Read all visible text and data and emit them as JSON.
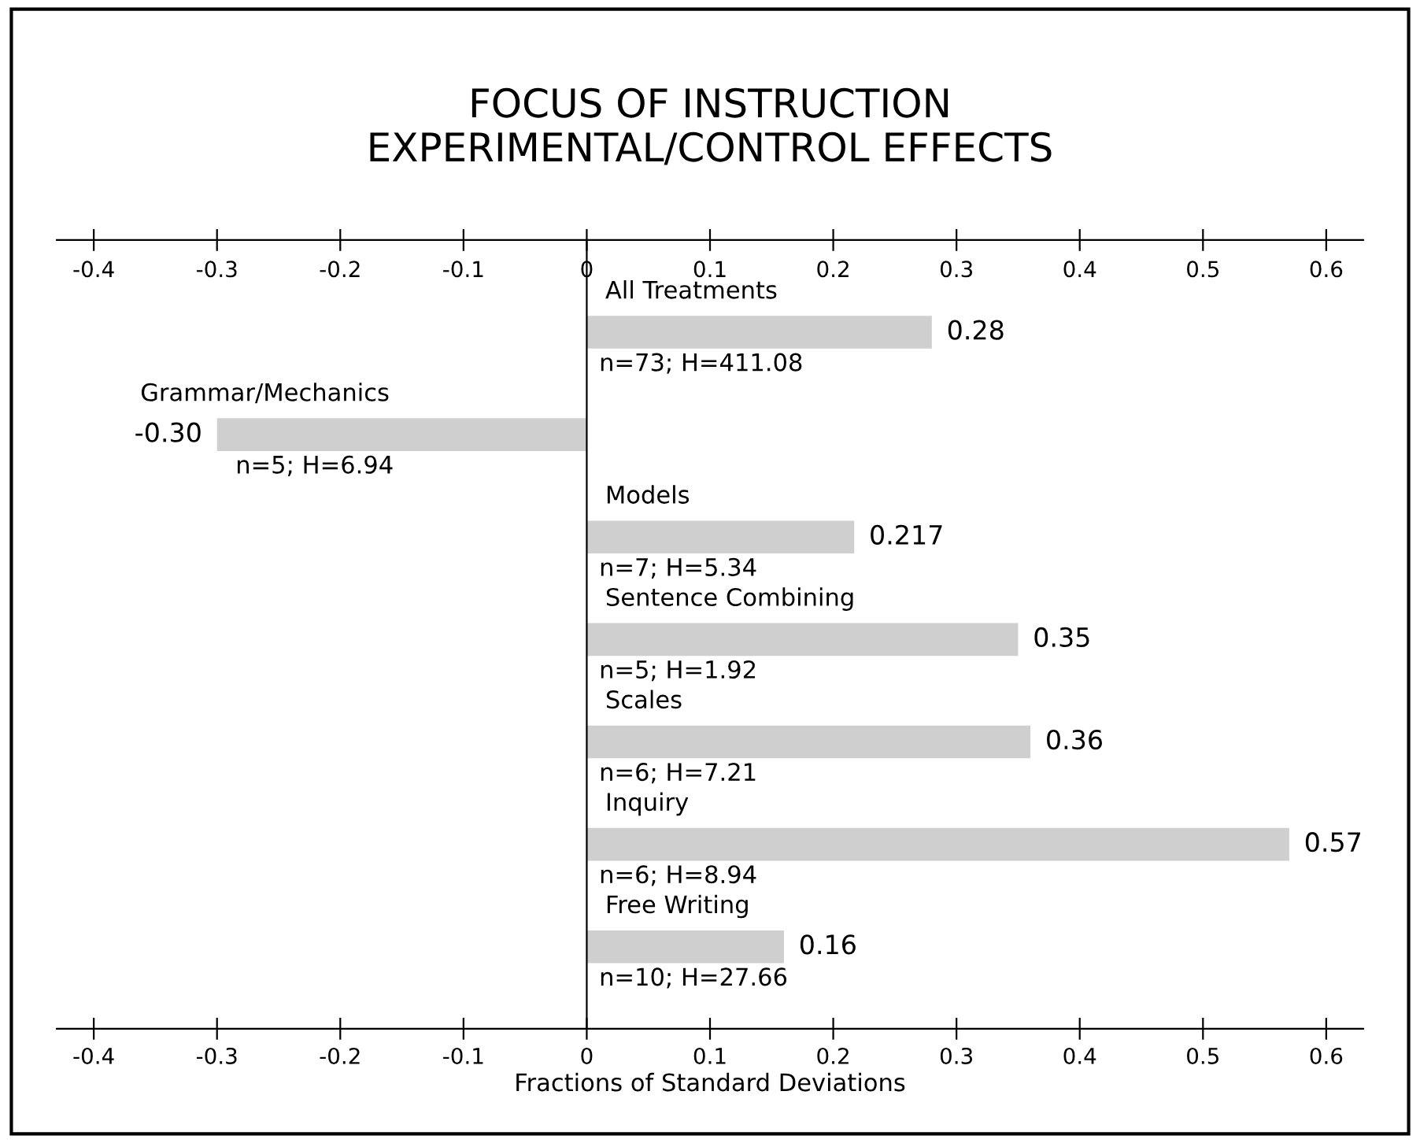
{
  "chart_data": {
    "type": "bar",
    "orientation": "horizontal",
    "title": "FOCUS OF INSTRUCTION\nEXPERIMENTAL/CONTROL EFFECTS",
    "xlabel": "Fractions of Standard Deviations",
    "categories": [
      "All Treatments",
      "Grammar/Mechanics",
      "Models",
      "Sentence Combining",
      "Scales",
      "Inquiry",
      "Free Writing"
    ],
    "values": [
      0.28,
      -0.3,
      0.217,
      0.35,
      0.36,
      0.57,
      0.16
    ],
    "value_labels": [
      "0.28",
      "-0.30",
      "0.217",
      "0.35",
      "0.36",
      "0.57",
      "0.16"
    ],
    "color": "#cfcfcf",
    "xlim": [
      -0.43,
      0.63
    ],
    "xticks": [
      -0.4,
      -0.3,
      -0.2,
      -0.1,
      0,
      0.1,
      0.2,
      0.3,
      0.4,
      0.5,
      0.6
    ],
    "x2lim": [
      -0.43,
      0.63
    ],
    "x2ticks": [
      -0.4,
      -0.3,
      -0.2,
      -0.1,
      0,
      0.1,
      0.2,
      0.3,
      0.4,
      0.5,
      0.6
    ],
    "annotations": [
      "n=73; H=411.08",
      "n=5; H=6.94",
      "n=7; H=5.34",
      "n=5; H=1.92",
      "n=6; H=7.21",
      "n=6; H=8.94",
      "n=10; H=27.66"
    ],
    "grid": false,
    "legend": false
  }
}
